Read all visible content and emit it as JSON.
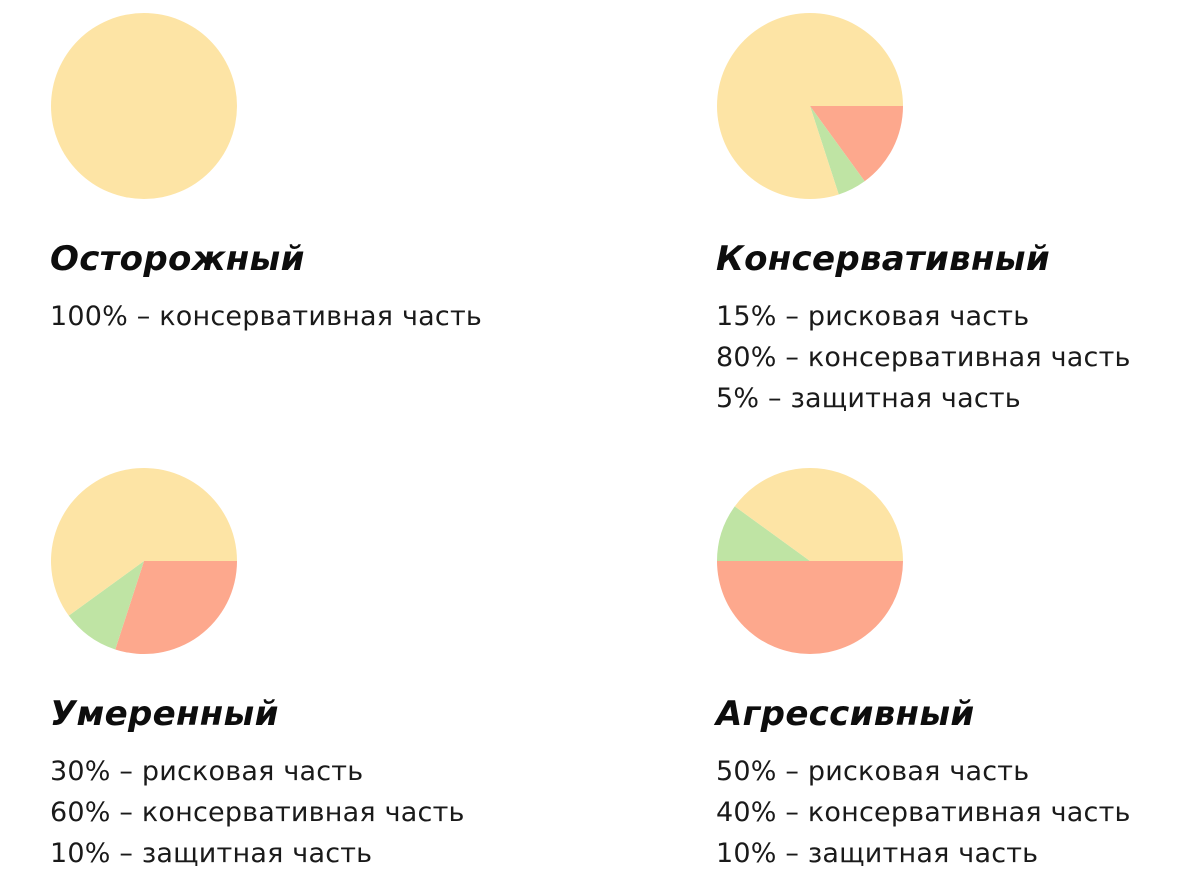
{
  "colors": {
    "risk": "#fda88d",
    "conservative": "#fde4a5",
    "protective": "#bfe4a4"
  },
  "chart_data": [
    {
      "type": "pie",
      "title": "Осторожный",
      "slices": [
        {
          "category": "conservative",
          "value": 100
        }
      ],
      "lines": [
        "100% – консервативная часть"
      ]
    },
    {
      "type": "pie",
      "title": "Консервативный",
      "slices": [
        {
          "category": "risk",
          "value": 15
        },
        {
          "category": "protective",
          "value": 5
        },
        {
          "category": "conservative",
          "value": 80
        }
      ],
      "lines": [
        "15% – рисковая часть",
        "80% – консервативная часть",
        "5% – защитная часть"
      ]
    },
    {
      "type": "pie",
      "title": "Умеренный",
      "slices": [
        {
          "category": "risk",
          "value": 30
        },
        {
          "category": "protective",
          "value": 10
        },
        {
          "category": "conservative",
          "value": 60
        }
      ],
      "lines": [
        "30% – рисковая часть",
        "60% – консервативная часть",
        "10% – защитная часть"
      ]
    },
    {
      "type": "pie",
      "title": "Агрессивный",
      "slices": [
        {
          "category": "risk",
          "value": 50
        },
        {
          "category": "protective",
          "value": 10
        },
        {
          "category": "conservative",
          "value": 40
        }
      ],
      "lines": [
        "50% – рисковая часть",
        "40% – консервативная часть",
        "10% – защитная часть"
      ]
    }
  ]
}
